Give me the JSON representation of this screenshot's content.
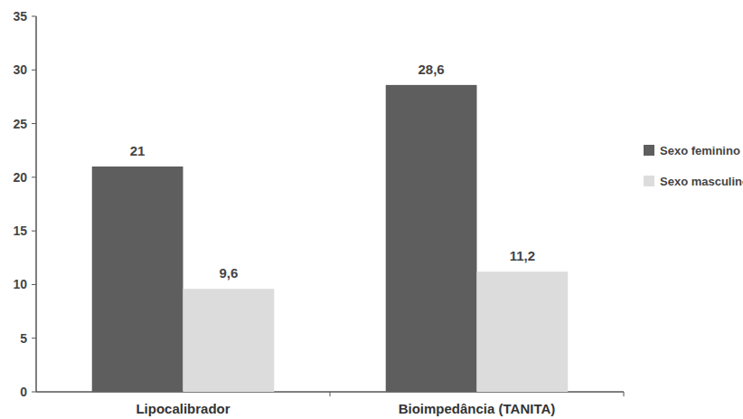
{
  "chart_data": {
    "type": "bar",
    "categories": [
      "Lipocalibrador",
      "Bioimpedância (TANITA)"
    ],
    "series": [
      {
        "name": "Sexo feminino",
        "color": "#5e5e5e",
        "values": [
          21,
          28.6
        ],
        "value_labels": [
          "21",
          "28,6"
        ]
      },
      {
        "name": "Sexo masculino",
        "color": "#dcdcdc",
        "values": [
          9.6,
          11.2
        ],
        "value_labels": [
          "9,6",
          "11,2"
        ]
      }
    ],
    "ylim": [
      0,
      35
    ],
    "yticks": [
      0,
      5,
      10,
      15,
      20,
      25,
      30,
      35
    ],
    "grid": false,
    "legend": "right",
    "data_labels": true
  }
}
